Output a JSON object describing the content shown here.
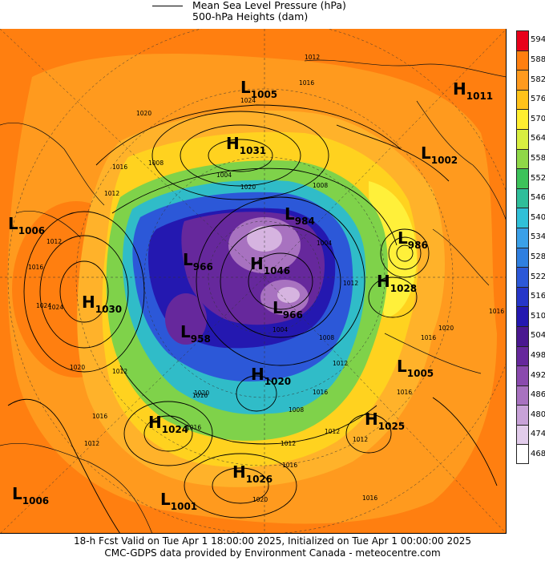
{
  "legend": {
    "pressure_label": "Mean Sea Level Pressure (hPa)",
    "heights_label": "500-hPa Heights (dam)"
  },
  "colorbar": {
    "levels": [
      "594",
      "588",
      "582",
      "576",
      "570",
      "564",
      "558",
      "552",
      "546",
      "540",
      "534",
      "528",
      "522",
      "516",
      "510",
      "504",
      "498",
      "492",
      "486",
      "480",
      "474",
      "468"
    ],
    "colors": [
      "#e8001a",
      "#ff7f10",
      "#ff9a1e",
      "#ffc21a",
      "#ffee30",
      "#d8ee40",
      "#8fd848",
      "#3cc25a",
      "#2fbe9a",
      "#30c0d8",
      "#3aa0e8",
      "#2f7fe0",
      "#2c58d8",
      "#2636c8",
      "#2418b0",
      "#4a1890",
      "#66289c",
      "#8a4aae",
      "#a872c0",
      "#c8a2d8",
      "#e2cceb",
      "#ffffff"
    ]
  },
  "pressure_centers": [
    {
      "type": "L",
      "value": "1005"
    },
    {
      "type": "H",
      "value": "1011"
    },
    {
      "type": "H",
      "value": "1031"
    },
    {
      "type": "L",
      "value": "1002"
    },
    {
      "type": "L",
      "value": "1006"
    },
    {
      "type": "L",
      "value": "986"
    },
    {
      "type": "H",
      "value": "1030"
    },
    {
      "type": "L",
      "value": "966"
    },
    {
      "type": "H",
      "value": "1046"
    },
    {
      "type": "L",
      "value": "984"
    },
    {
      "type": "H",
      "value": "1028"
    },
    {
      "type": "L",
      "value": "966"
    },
    {
      "type": "L",
      "value": "958"
    },
    {
      "type": "H",
      "value": "1020"
    },
    {
      "type": "L",
      "value": "1005"
    },
    {
      "type": "H",
      "value": "1024"
    },
    {
      "type": "H",
      "value": "1025"
    },
    {
      "type": "H",
      "value": "1026"
    },
    {
      "type": "L",
      "value": "1006"
    },
    {
      "type": "L",
      "value": "1001"
    }
  ],
  "isobar_labels": [
    "1012",
    "1016",
    "1024",
    "1020",
    "1008",
    "1012",
    "1016",
    "1016",
    "1024",
    "1020",
    "1012",
    "1016",
    "1008",
    "1004",
    "1004",
    "1012",
    "1016",
    "1020",
    "1012",
    "1016",
    "1008",
    "1012",
    "1016",
    "1020",
    "1012",
    "1016",
    "1016",
    "1012",
    "1024",
    "1016",
    "1020",
    "1004",
    "1008",
    "1012",
    "1016",
    "1012",
    "1020",
    "1016"
  ],
  "footer": {
    "line1": "18-h Fcst Valid on Tue Apr  1 18:00:00 2025, Initialized on Tue Apr  1 00:00:00 2025",
    "line2": "CMC-GDPS data provided by Environment Canada - meteocentre.com"
  }
}
